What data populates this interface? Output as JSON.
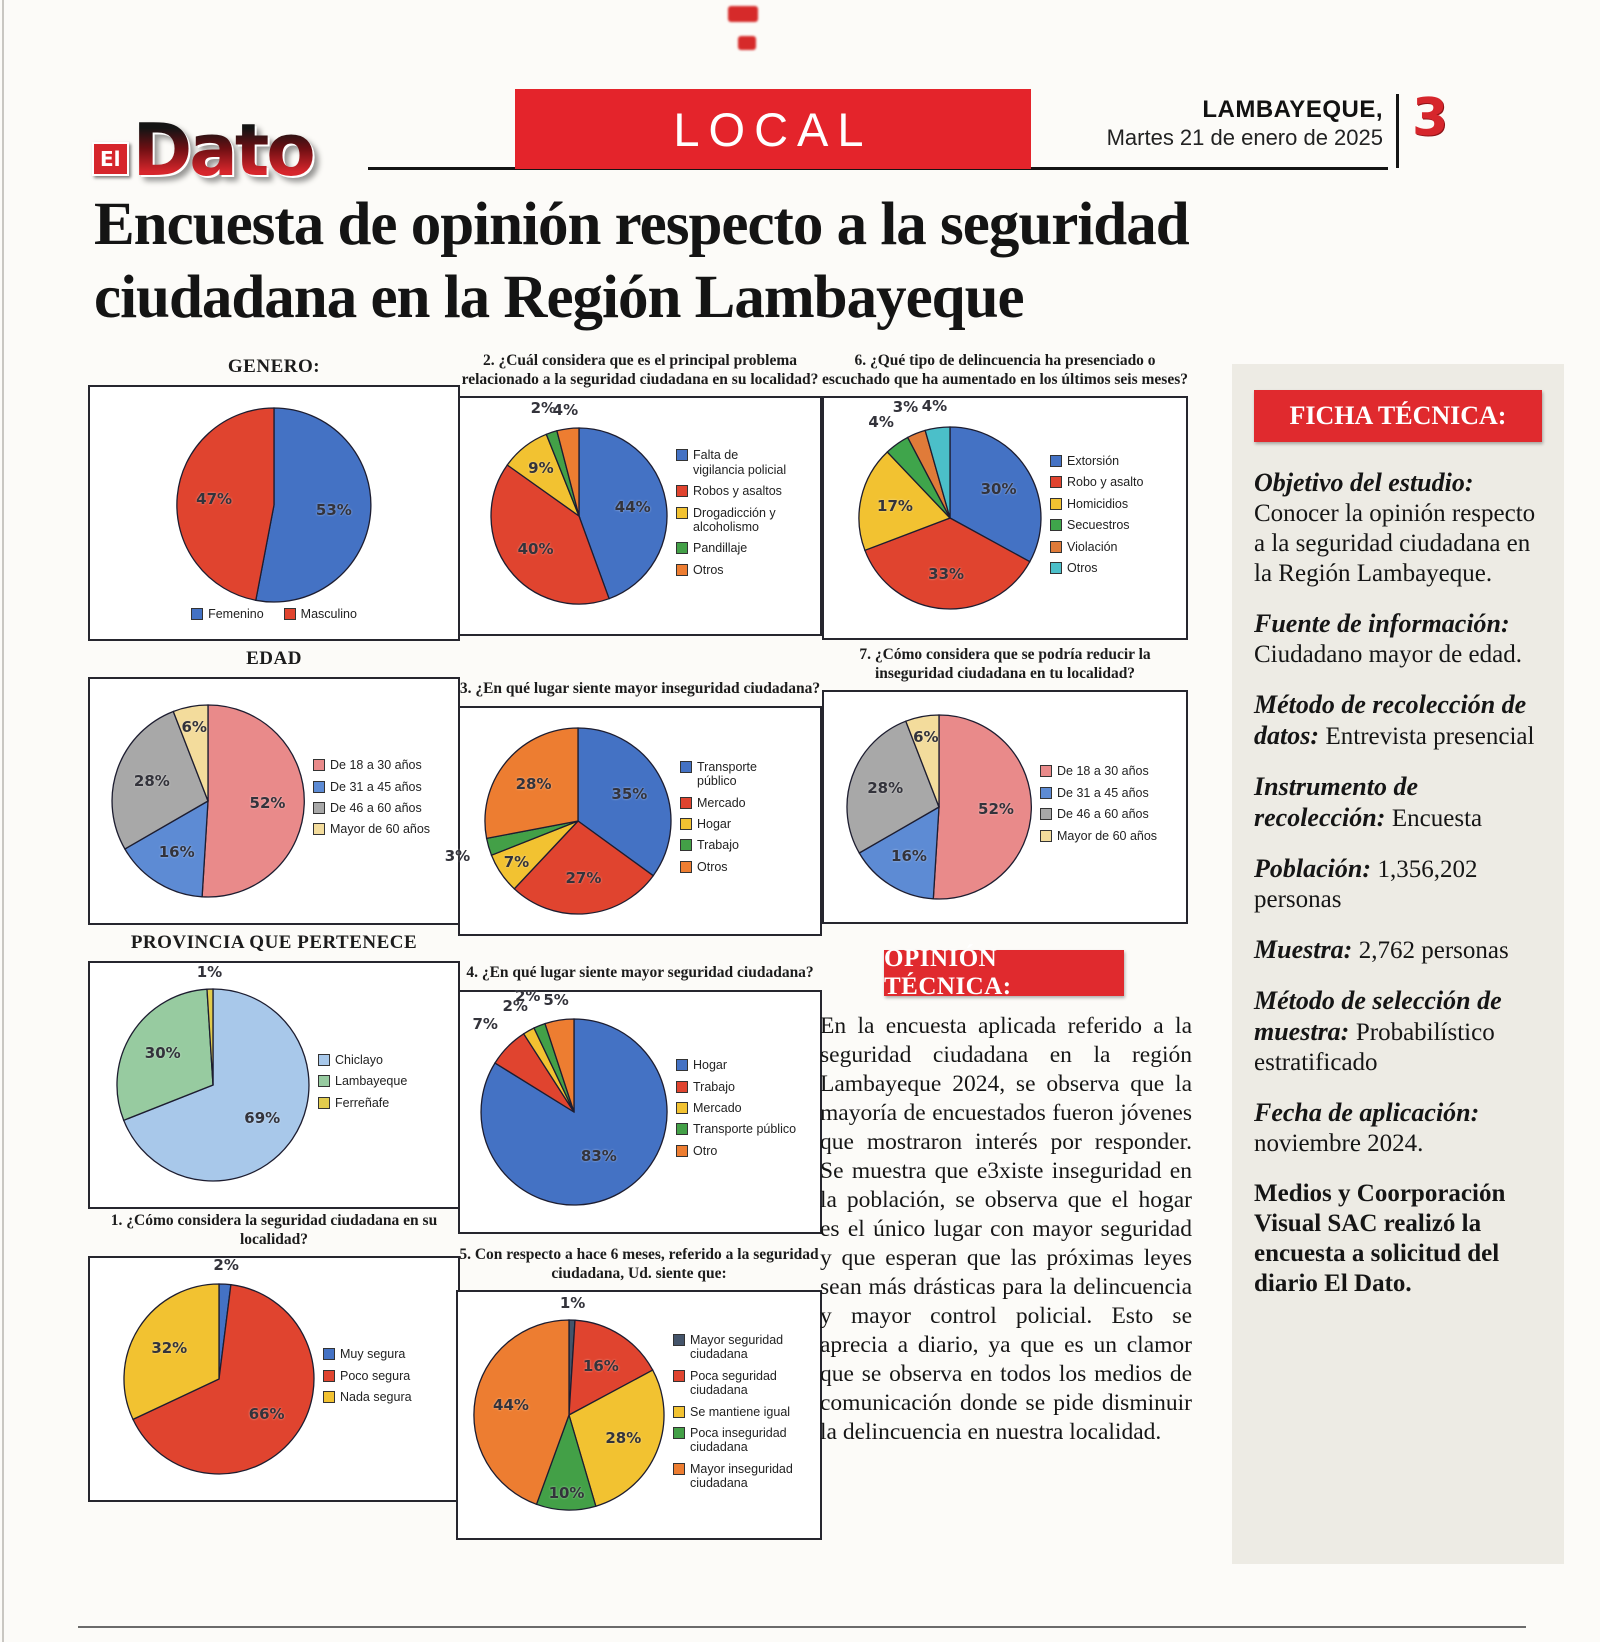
{
  "header": {
    "logo_el": "El",
    "logo_dato": "Dato",
    "section": "LOCAL",
    "region": "LAMBAYEQUE,",
    "date": "Martes 21 de enero de 2025",
    "page_number": "3"
  },
  "headline": {
    "line1": "Encuesta de opinión respecto a la seguridad",
    "line2": "ciudadana en la Región Lambayeque"
  },
  "opinion": {
    "title": "OPINIÓN TÉCNICA:",
    "text": "En la encuesta aplicada referido a la seguridad ciudadana en la región Lambayeque 2024, se observa que la mayoría de encuestados fueron jóvenes que mostraron interés por responder. Se muestra que e3xiste inseguridad en la población, se observa que el hogar es el único lugar con mayor seguridad y que esperan que las próximas leyes sean más drásticas para la delincuencia y mayor control policial. Esto se aprecia a diario, ya que es un clamor que se observa en todos los medios de comunicación donde se pide disminuir la delincuencia en nuestra localidad."
  },
  "ficha": {
    "title": "FICHA TÉCNICA:",
    "items": [
      {
        "label": "Objetivo del estudio:",
        "text": "Conocer la opinión respecto a la seguridad ciudadana en la Región Lambayeque.",
        "style": "normal"
      },
      {
        "label": "Fuente de información:",
        "text": "Ciudadano mayor de edad.",
        "style": "normal"
      },
      {
        "label": "Método de recolección de datos:",
        "text": "Entrevista presencial",
        "style": "normal"
      },
      {
        "label": "Instrumento de recolección:",
        "text": "Encuesta",
        "style": "normal"
      },
      {
        "label": "Población:",
        "text": "1,356,202 personas",
        "style": "normal"
      },
      {
        "label": "Muestra:",
        "text": "2,762 personas",
        "style": "normal"
      },
      {
        "label": "Método de selección de muestra:",
        "text": "Probabilístico estratificado",
        "style": "normal"
      },
      {
        "label": "Fecha de aplicación:",
        "text": "noviembre 2024.",
        "style": "normal"
      },
      {
        "label": "",
        "text": "Medios y Coorporación Visual SAC realizó la encuesta a solicitud del diario El Dato.",
        "style": "bold"
      }
    ]
  },
  "chart_data": [
    {
      "type": "pie",
      "title": "GENERO:",
      "legend": "bottom",
      "size": 200,
      "slices": [
        {
          "label": "Femenino",
          "value": 53,
          "color": "#4472c4"
        },
        {
          "label": "Masculino",
          "value": 47,
          "color": "#e0442f"
        }
      ]
    },
    {
      "type": "pie",
      "title": "2. ¿Cuál considera que es el principal problema relacionado a la seguridad ciudadana en su localidad?",
      "legend": "right",
      "size": 182,
      "slices": [
        {
          "label": "Falta de vigilancia policial",
          "value": 44,
          "color": "#4472c4"
        },
        {
          "label": "Robos y asaltos",
          "value": 40,
          "color": "#e0442f"
        },
        {
          "label": "Drogadicción y alcoholismo",
          "value": 9,
          "color": "#f2c231",
          "lr": 0.7
        },
        {
          "label": "Pandillaje",
          "value": 2,
          "color": "#43a047",
          "out": true,
          "lr": 1.3
        },
        {
          "label": "Otros",
          "value": 4,
          "color": "#ed7d31",
          "out": true,
          "lr": 1.22
        }
      ]
    },
    {
      "type": "pie",
      "title": "6. ¿Qué tipo de delincuencia ha presenciado o escuchado que ha aumentado en los últimos seis meses?",
      "legend": "right",
      "size": 188,
      "slices": [
        {
          "label": "Extorsión",
          "value": 30,
          "color": "#4472c4"
        },
        {
          "label": "Robo y asalto",
          "value": 33,
          "color": "#e0442f"
        },
        {
          "label": "Homicidios",
          "value": 17,
          "color": "#f2c231"
        },
        {
          "label": "Secuestros",
          "value": 4,
          "color": "#3fa54b",
          "out": true,
          "lr": 1.3
        },
        {
          "label": "Violación",
          "value": 3,
          "color": "#e07b39",
          "out": true,
          "lr": 1.32
        },
        {
          "label": "Otros",
          "value": 4,
          "color": "#4bbfc9",
          "out": true,
          "lr": 1.24
        }
      ]
    },
    {
      "type": "pie",
      "title": "EDAD",
      "legend": "right",
      "size": 198,
      "slices": [
        {
          "label": "De 18 a 30 años",
          "value": 52,
          "color": "#e98a8a"
        },
        {
          "label": "De 31 a 45 años",
          "value": 16,
          "color": "#5d8bd4"
        },
        {
          "label": "De 46 a 60 años",
          "value": 28,
          "color": "#a8a8a8"
        },
        {
          "label": "Mayor de 60 años",
          "value": 6,
          "color": "#f3dc9c",
          "lr": 0.78
        }
      ]
    },
    {
      "type": "pie",
      "title": "3. ¿En qué lugar siente mayor inseguridad ciudadana?",
      "legend": "right",
      "size": 192,
      "slices": [
        {
          "label": "Transporte público",
          "value": 35,
          "color": "#4472c4"
        },
        {
          "label": "Mercado",
          "value": 27,
          "color": "#e0442f"
        },
        {
          "label": "Hogar",
          "value": 7,
          "color": "#f2c231",
          "lr": 0.8
        },
        {
          "label": "Trabajo",
          "value": 3,
          "color": "#43a047",
          "out": true,
          "lr": 1.35
        },
        {
          "label": "Otros",
          "value": 28,
          "color": "#ed7d31"
        }
      ]
    },
    {
      "type": "pie",
      "title": "7. ¿Cómo considera que se podría reducir la inseguridad ciudadana en tu localidad?",
      "legend": "right",
      "size": 190,
      "slices": [
        {
          "label": "De 18 a 30 años",
          "value": 52,
          "color": "#e98a8a"
        },
        {
          "label": "De 31 a 45 años",
          "value": 16,
          "color": "#5d8bd4"
        },
        {
          "label": "De 46 a 60 años",
          "value": 28,
          "color": "#a8a8a8"
        },
        {
          "label": "Mayor de 60 años",
          "value": 6,
          "color": "#f3dc9c",
          "lr": 0.78
        }
      ]
    },
    {
      "type": "pie",
      "title": "PROVINCIA QUE PERTENECE",
      "legend": "right",
      "size": 198,
      "slices": [
        {
          "label": "Chiclayo",
          "value": 69,
          "color": "#a8c8ea"
        },
        {
          "label": "Lambayeque",
          "value": 30,
          "color": "#97cba0"
        },
        {
          "label": "Ferreñafe",
          "value": 1,
          "color": "#e2cc4e",
          "out": true,
          "lr": 1.18
        }
      ]
    },
    {
      "type": "pie",
      "title": "4. ¿En qué lugar siente mayor seguridad ciudadana?",
      "legend": "right",
      "size": 192,
      "slices": [
        {
          "label": "Hogar",
          "value": 83,
          "color": "#4472c4",
          "lr": 0.55
        },
        {
          "label": "Trabajo",
          "value": 7,
          "color": "#e0442f",
          "out": true,
          "lr": 1.34
        },
        {
          "label": "Mercado",
          "value": 2,
          "color": "#f2c231",
          "out": true,
          "lr": 1.3
        },
        {
          "label": "Transporte público",
          "value": 2,
          "color": "#43a047",
          "out": true,
          "lr": 1.34
        },
        {
          "label": "Otro",
          "value": 5,
          "color": "#ed7d31",
          "out": true,
          "lr": 1.22
        }
      ]
    },
    {
      "type": "pie",
      "title": "1. ¿Cómo considera la seguridad ciudadana en su localidad?",
      "legend": "right",
      "size": 196,
      "slices": [
        {
          "label": "Muy segura",
          "value": 2,
          "color": "#4472c4",
          "out": true,
          "lr": 1.2
        },
        {
          "label": "Poco segura",
          "value": 66,
          "color": "#e0442f"
        },
        {
          "label": "Nada segura",
          "value": 32,
          "color": "#f2c231"
        }
      ]
    },
    {
      "type": "pie",
      "title": "5. Con respecto a hace 6 meses, referido a la seguridad ciudadana, Ud. siente que:",
      "legend": "right",
      "size": 196,
      "slices": [
        {
          "label": "Mayor seguridad ciudadana",
          "value": 1,
          "color": "#44546a",
          "out": true,
          "lr": 1.18
        },
        {
          "label": "Poca seguridad ciudadana",
          "value": 16,
          "color": "#e0442f"
        },
        {
          "label": "Se mantiene igual",
          "value": 28,
          "color": "#f2c231"
        },
        {
          "label": "Poca inseguridad ciudadana",
          "value": 10,
          "color": "#43a047",
          "lr": 0.82
        },
        {
          "label": "Mayor inseguridad ciudadana",
          "value": 44,
          "color": "#ed7d31"
        }
      ]
    }
  ]
}
